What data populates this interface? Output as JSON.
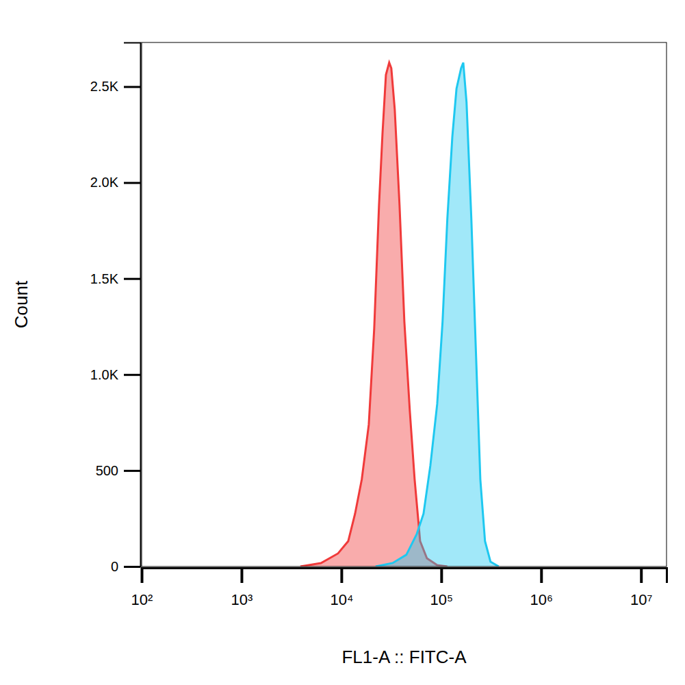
{
  "chart_data": {
    "type": "area",
    "x_label": "FL1-A :: FITC-A",
    "y_label": "Count",
    "log": "x",
    "xlim": [
      100,
      18000000
    ],
    "xticks": [
      {
        "value": 100,
        "label": "10²"
      },
      {
        "value": 1000,
        "label": "10³"
      },
      {
        "value": 10000,
        "label": "10⁴"
      },
      {
        "value": 100000,
        "label": "10⁵"
      },
      {
        "value": 1000000,
        "label": "10⁶"
      },
      {
        "value": 10000000,
        "label": "10⁷"
      }
    ],
    "ylim": [
      0,
      2730
    ],
    "yticks": [
      0,
      500,
      {
        "value": 1000,
        "label": "1.0K"
      },
      {
        "value": 1500,
        "label": "1.5K"
      },
      {
        "value": 2000,
        "label": "2.0K"
      },
      {
        "value": 2500,
        "label": "2.5K"
      }
    ],
    "series": [
      {
        "color": "#f03a3a",
        "x": [
          3880,
          6240,
          9250,
          11700,
          13700,
          16000,
          18800,
          21300,
          23800,
          25800,
          27900,
          30100,
          31600,
          34200,
          38200,
          42700,
          48400,
          54100,
          61400,
          71800,
          91000,
          115000
        ],
        "values": [
          0,
          18,
          68,
          132,
          275,
          454,
          739,
          1239,
          1882,
          2257,
          2561,
          2625,
          2596,
          2382,
          1882,
          1275,
          811,
          454,
          132,
          43,
          7,
          0
        ]
      },
      {
        "color": "#1ec8f0",
        "x": [
          22000,
          32600,
          44700,
          56700,
          66400,
          77700,
          91000,
          103000,
          115000,
          129000,
          142000,
          158000,
          166000,
          179000,
          200000,
          223000,
          246000,
          274000,
          311000,
          376000
        ],
        "values": [
          0,
          18,
          61,
          168,
          275,
          525,
          846,
          1275,
          1811,
          2239,
          2489,
          2596,
          2625,
          2418,
          1811,
          1096,
          454,
          132,
          25,
          0
        ]
      }
    ]
  }
}
